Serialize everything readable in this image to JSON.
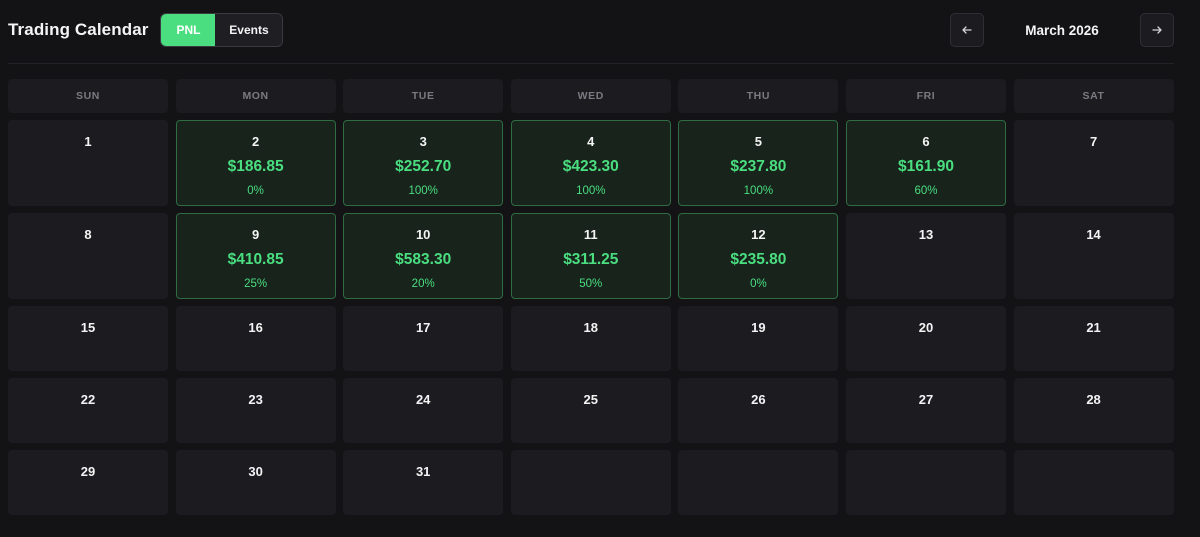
{
  "header": {
    "title": "Trading Calendar",
    "toggle": {
      "pnl_label": "PNL",
      "events_label": "Events",
      "active": "PNL"
    },
    "month_label": "March 2026",
    "prev_icon": "arrow-left-icon",
    "next_icon": "arrow-right-icon"
  },
  "colors": {
    "background": "#131316",
    "cell": "#1c1c20",
    "profit_cell": "#17231b",
    "profit_border": "#2f6b43",
    "accent_green": "#4ade80"
  },
  "weekdays": [
    "SUN",
    "MON",
    "TUE",
    "WED",
    "THU",
    "FRI",
    "SAT"
  ],
  "weeks": [
    [
      {
        "day": "1"
      },
      {
        "day": "2",
        "pnl": "$186.85",
        "pct": "0%"
      },
      {
        "day": "3",
        "pnl": "$252.70",
        "pct": "100%"
      },
      {
        "day": "4",
        "pnl": "$423.30",
        "pct": "100%"
      },
      {
        "day": "5",
        "pnl": "$237.80",
        "pct": "100%"
      },
      {
        "day": "6",
        "pnl": "$161.90",
        "pct": "60%"
      },
      {
        "day": "7"
      }
    ],
    [
      {
        "day": "8"
      },
      {
        "day": "9",
        "pnl": "$410.85",
        "pct": "25%"
      },
      {
        "day": "10",
        "pnl": "$583.30",
        "pct": "20%"
      },
      {
        "day": "11",
        "pnl": "$311.25",
        "pct": "50%"
      },
      {
        "day": "12",
        "pnl": "$235.80",
        "pct": "0%"
      },
      {
        "day": "13"
      },
      {
        "day": "14"
      }
    ],
    [
      {
        "day": "15"
      },
      {
        "day": "16"
      },
      {
        "day": "17"
      },
      {
        "day": "18"
      },
      {
        "day": "19"
      },
      {
        "day": "20"
      },
      {
        "day": "21"
      }
    ],
    [
      {
        "day": "22"
      },
      {
        "day": "23"
      },
      {
        "day": "24"
      },
      {
        "day": "25"
      },
      {
        "day": "26"
      },
      {
        "day": "27"
      },
      {
        "day": "28"
      }
    ],
    [
      {
        "day": "29"
      },
      {
        "day": "30"
      },
      {
        "day": "31"
      },
      {
        "day": ""
      },
      {
        "day": ""
      },
      {
        "day": ""
      },
      {
        "day": ""
      }
    ]
  ]
}
